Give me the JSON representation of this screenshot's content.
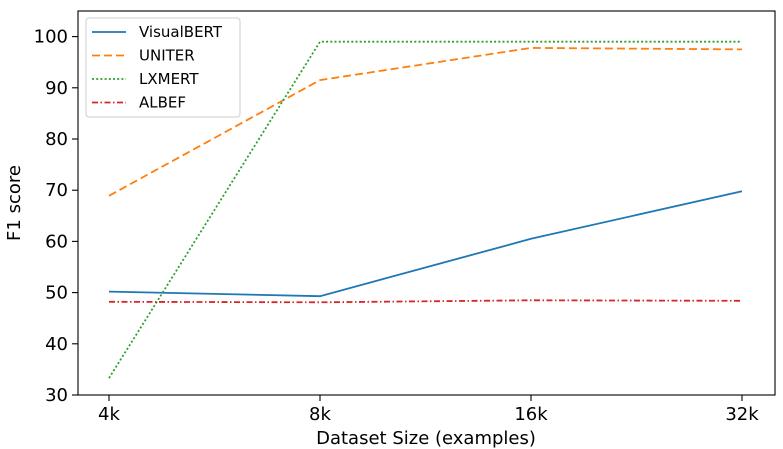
{
  "chart_data": {
    "type": "line",
    "categories": [
      "4k",
      "8k",
      "16k",
      "32k"
    ],
    "xlabel": "Dataset Size (examples)",
    "ylabel": "F1 score",
    "ylim": [
      30,
      105
    ],
    "yticks": [
      30,
      40,
      50,
      60,
      70,
      80,
      90,
      100
    ],
    "grid": false,
    "legend_position": "top-left",
    "series": [
      {
        "name": "VisualBERT",
        "values": [
          50.2,
          49.3,
          60.5,
          69.8
        ],
        "color": "#1f77b4",
        "style": "solid"
      },
      {
        "name": "UNITER",
        "values": [
          68.9,
          91.5,
          97.8,
          97.5
        ],
        "color": "#ff7f0e",
        "style": "dashed"
      },
      {
        "name": "LXMERT",
        "values": [
          33.3,
          99.0,
          99.0,
          99.0
        ],
        "color": "#2ca02c",
        "style": "dotted"
      },
      {
        "name": "ALBEF",
        "values": [
          48.2,
          48.1,
          48.5,
          48.4
        ],
        "color": "#d62728",
        "style": "dashdot"
      }
    ]
  }
}
